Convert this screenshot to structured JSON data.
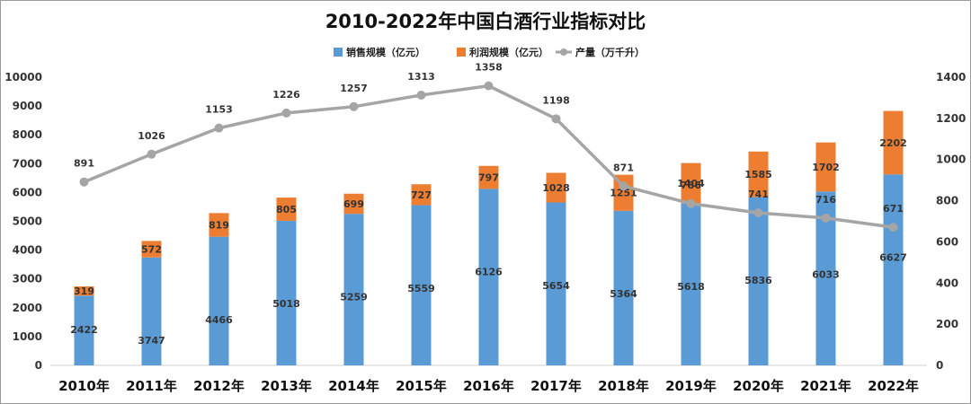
{
  "chart_data": {
    "type": "bar",
    "title": "2010-2022年中国白酒行业指标对比",
    "categories": [
      "2010年",
      "2011年",
      "2012年",
      "2013年",
      "2014年",
      "2015年",
      "2016年",
      "2017年",
      "2018年",
      "2019年",
      "2020年",
      "2021年",
      "2022年"
    ],
    "series": [
      {
        "name": "销售规模（亿元）",
        "kind": "bar",
        "axis": "left",
        "color": "#5B9BD5",
        "values": [
          2422,
          3747,
          4466,
          5018,
          5259,
          5559,
          6126,
          5654,
          5364,
          5618,
          5836,
          6033,
          6627
        ]
      },
      {
        "name": "利润规模（亿元）",
        "kind": "bar-stacked",
        "axis": "left",
        "color": "#ED7D31",
        "values": [
          319,
          572,
          819,
          805,
          699,
          727,
          797,
          1028,
          1251,
          1404,
          1585,
          1702,
          2202
        ]
      },
      {
        "name": "产量（万千升）",
        "kind": "line",
        "axis": "right",
        "color": "#A5A5A5",
        "values": [
          891,
          1026,
          1153,
          1226,
          1257,
          1313,
          1358,
          1198,
          871,
          786,
          741,
          716,
          671
        ]
      }
    ],
    "ylim": [
      0,
      10000
    ],
    "y_ticks": [
      0,
      1000,
      2000,
      3000,
      4000,
      5000,
      6000,
      7000,
      8000,
      9000,
      10000
    ],
    "y2lim": [
      0,
      1400
    ],
    "y2_ticks": [
      0,
      200,
      400,
      600,
      800,
      1000,
      1200,
      1400
    ],
    "legend": "top-center",
    "grid": false
  }
}
